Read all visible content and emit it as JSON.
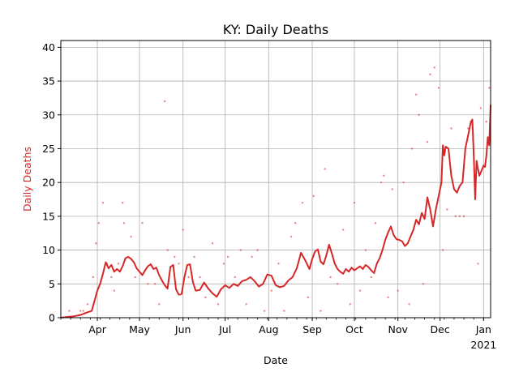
{
  "chart_data": {
    "type": "line",
    "title": "KY: Daily Deaths",
    "xlabel": "Date",
    "ylabel": "Daily Deaths",
    "x_start": "2020-03-06",
    "x_end": "2021-01-06",
    "ylim": [
      0,
      41
    ],
    "yticks": [
      0,
      5,
      10,
      15,
      20,
      25,
      30,
      35,
      40
    ],
    "xticks": [
      {
        "date": "2020-04-01",
        "label": "Apr",
        "sublabel": ""
      },
      {
        "date": "2020-05-01",
        "label": "May",
        "sublabel": ""
      },
      {
        "date": "2020-06-01",
        "label": "Jun",
        "sublabel": ""
      },
      {
        "date": "2020-07-01",
        "label": "Jul",
        "sublabel": ""
      },
      {
        "date": "2020-08-01",
        "label": "Aug",
        "sublabel": ""
      },
      {
        "date": "2020-09-01",
        "label": "Sep",
        "sublabel": ""
      },
      {
        "date": "2020-10-01",
        "label": "Oct",
        "sublabel": ""
      },
      {
        "date": "2020-11-01",
        "label": "Nov",
        "sublabel": ""
      },
      {
        "date": "2020-12-01",
        "label": "Dec",
        "sublabel": ""
      },
      {
        "date": "2021-01-01",
        "label": "Jan",
        "sublabel": "2021"
      }
    ],
    "grid": true,
    "line_color": "#d62728",
    "scatter_color": "#d62728",
    "series": [
      {
        "type": "line",
        "points": [
          [
            "2020-03-06",
            0
          ],
          [
            "2020-03-10",
            0.1
          ],
          [
            "2020-03-15",
            0.2
          ],
          [
            "2020-03-20",
            0.4
          ],
          [
            "2020-03-25",
            0.8
          ],
          [
            "2020-03-28",
            1.0
          ],
          [
            "2020-03-30",
            2.5
          ],
          [
            "2020-04-01",
            4.0
          ],
          [
            "2020-04-03",
            5.0
          ],
          [
            "2020-04-05",
            6.5
          ],
          [
            "2020-04-07",
            8.2
          ],
          [
            "2020-04-09",
            7.3
          ],
          [
            "2020-04-11",
            7.8
          ],
          [
            "2020-04-13",
            6.8
          ],
          [
            "2020-04-15",
            7.2
          ],
          [
            "2020-04-17",
            6.8
          ],
          [
            "2020-04-19",
            7.6
          ],
          [
            "2020-04-21",
            8.8
          ],
          [
            "2020-04-23",
            9.0
          ],
          [
            "2020-04-25",
            8.7
          ],
          [
            "2020-04-27",
            8.2
          ],
          [
            "2020-04-29",
            7.3
          ],
          [
            "2020-05-01",
            6.8
          ],
          [
            "2020-05-03",
            6.3
          ],
          [
            "2020-05-05",
            7.0
          ],
          [
            "2020-05-07",
            7.6
          ],
          [
            "2020-05-09",
            7.9
          ],
          [
            "2020-05-11",
            7.2
          ],
          [
            "2020-05-13",
            7.4
          ],
          [
            "2020-05-15",
            6.3
          ],
          [
            "2020-05-17",
            5.5
          ],
          [
            "2020-05-19",
            4.8
          ],
          [
            "2020-05-21",
            4.3
          ],
          [
            "2020-05-23",
            7.5
          ],
          [
            "2020-05-25",
            7.8
          ],
          [
            "2020-05-27",
            4.2
          ],
          [
            "2020-05-29",
            3.4
          ],
          [
            "2020-05-31",
            3.5
          ],
          [
            "2020-06-02",
            6.0
          ],
          [
            "2020-06-04",
            7.8
          ],
          [
            "2020-06-06",
            7.9
          ],
          [
            "2020-06-08",
            5.3
          ],
          [
            "2020-06-10",
            4.0
          ],
          [
            "2020-06-13",
            4.1
          ],
          [
            "2020-06-16",
            5.2
          ],
          [
            "2020-06-19",
            4.3
          ],
          [
            "2020-06-22",
            3.6
          ],
          [
            "2020-06-25",
            3.1
          ],
          [
            "2020-06-28",
            4.2
          ],
          [
            "2020-07-01",
            4.8
          ],
          [
            "2020-07-04",
            4.4
          ],
          [
            "2020-07-07",
            5.0
          ],
          [
            "2020-07-10",
            4.7
          ],
          [
            "2020-07-13",
            5.4
          ],
          [
            "2020-07-16",
            5.6
          ],
          [
            "2020-07-19",
            6.0
          ],
          [
            "2020-07-22",
            5.4
          ],
          [
            "2020-07-25",
            4.6
          ],
          [
            "2020-07-28",
            5.0
          ],
          [
            "2020-07-31",
            6.4
          ],
          [
            "2020-08-03",
            6.2
          ],
          [
            "2020-08-06",
            4.8
          ],
          [
            "2020-08-09",
            4.5
          ],
          [
            "2020-08-12",
            4.7
          ],
          [
            "2020-08-15",
            5.5
          ],
          [
            "2020-08-18",
            6.0
          ],
          [
            "2020-08-21",
            7.3
          ],
          [
            "2020-08-24",
            9.6
          ],
          [
            "2020-08-27",
            8.5
          ],
          [
            "2020-08-30",
            7.2
          ],
          [
            "2020-09-01",
            8.7
          ],
          [
            "2020-09-03",
            9.8
          ],
          [
            "2020-09-05",
            10.1
          ],
          [
            "2020-09-07",
            8.3
          ],
          [
            "2020-09-09",
            7.9
          ],
          [
            "2020-09-11",
            9.2
          ],
          [
            "2020-09-13",
            10.8
          ],
          [
            "2020-09-15",
            9.5
          ],
          [
            "2020-09-17",
            8.0
          ],
          [
            "2020-09-19",
            7.2
          ],
          [
            "2020-09-21",
            6.8
          ],
          [
            "2020-09-23",
            6.5
          ],
          [
            "2020-09-25",
            7.2
          ],
          [
            "2020-09-27",
            6.8
          ],
          [
            "2020-09-29",
            7.4
          ],
          [
            "2020-10-01",
            7.0
          ],
          [
            "2020-10-03",
            7.3
          ],
          [
            "2020-10-05",
            7.6
          ],
          [
            "2020-10-07",
            7.2
          ],
          [
            "2020-10-09",
            7.8
          ],
          [
            "2020-10-11",
            7.5
          ],
          [
            "2020-10-13",
            7.0
          ],
          [
            "2020-10-15",
            6.6
          ],
          [
            "2020-10-17",
            8.0
          ],
          [
            "2020-10-19",
            8.8
          ],
          [
            "2020-10-21",
            10.0
          ],
          [
            "2020-10-23",
            11.5
          ],
          [
            "2020-10-25",
            12.6
          ],
          [
            "2020-10-27",
            13.5
          ],
          [
            "2020-10-29",
            12.2
          ],
          [
            "2020-10-31",
            11.6
          ],
          [
            "2020-11-02",
            11.5
          ],
          [
            "2020-11-04",
            11.3
          ],
          [
            "2020-11-06",
            10.6
          ],
          [
            "2020-11-08",
            11.0
          ],
          [
            "2020-11-10",
            12.0
          ],
          [
            "2020-11-12",
            13.0
          ],
          [
            "2020-11-14",
            14.5
          ],
          [
            "2020-11-16",
            13.8
          ],
          [
            "2020-11-18",
            15.5
          ],
          [
            "2020-11-20",
            14.6
          ],
          [
            "2020-11-22",
            17.8
          ],
          [
            "2020-11-24",
            16.0
          ],
          [
            "2020-11-26",
            13.5
          ],
          [
            "2020-11-28",
            16.0
          ],
          [
            "2020-11-30",
            18.0
          ],
          [
            "2020-12-02",
            20.0
          ],
          [
            "2020-12-03",
            25.5
          ],
          [
            "2020-12-04",
            24.0
          ],
          [
            "2020-12-05",
            25.3
          ],
          [
            "2020-12-07",
            25.0
          ],
          [
            "2020-12-09",
            21.0
          ],
          [
            "2020-12-11",
            19.0
          ],
          [
            "2020-12-13",
            18.5
          ],
          [
            "2020-12-15",
            19.5
          ],
          [
            "2020-12-17",
            20.0
          ],
          [
            "2020-12-19",
            25.0
          ],
          [
            "2020-12-21",
            27.0
          ],
          [
            "2020-12-23",
            29.0
          ],
          [
            "2020-12-24",
            29.3
          ],
          [
            "2020-12-25",
            24.0
          ],
          [
            "2020-12-26",
            17.5
          ],
          [
            "2020-12-27",
            23.2
          ],
          [
            "2020-12-28",
            22.0
          ],
          [
            "2020-12-29",
            21.0
          ],
          [
            "2020-12-31",
            22.0
          ],
          [
            "2021-01-01",
            22.5
          ],
          [
            "2021-01-02",
            22.3
          ],
          [
            "2021-01-03",
            24.0
          ],
          [
            "2021-01-04",
            26.7
          ],
          [
            "2021-01-05",
            25.5
          ],
          [
            "2021-01-06",
            31.5
          ]
        ]
      },
      {
        "type": "scatter",
        "points": [
          [
            "2020-03-12",
            1
          ],
          [
            "2020-03-20",
            1
          ],
          [
            "2020-03-22",
            1
          ],
          [
            "2020-03-25",
            2
          ],
          [
            "2020-03-29",
            6
          ],
          [
            "2020-03-31",
            11
          ],
          [
            "2020-04-02",
            14
          ],
          [
            "2020-04-05",
            17
          ],
          [
            "2020-04-08",
            8
          ],
          [
            "2020-04-11",
            6
          ],
          [
            "2020-04-13",
            4
          ],
          [
            "2020-04-16",
            8
          ],
          [
            "2020-04-19",
            17
          ],
          [
            "2020-04-20",
            14
          ],
          [
            "2020-04-25",
            12
          ],
          [
            "2020-04-28",
            6
          ],
          [
            "2020-05-03",
            14
          ],
          [
            "2020-05-07",
            5
          ],
          [
            "2020-05-12",
            5
          ],
          [
            "2020-05-15",
            2
          ],
          [
            "2020-05-19",
            32
          ],
          [
            "2020-05-21",
            10
          ],
          [
            "2020-05-26",
            9
          ],
          [
            "2020-05-29",
            8
          ],
          [
            "2020-06-01",
            13
          ],
          [
            "2020-06-05",
            6
          ],
          [
            "2020-06-09",
            9
          ],
          [
            "2020-06-13",
            6
          ],
          [
            "2020-06-17",
            3
          ],
          [
            "2020-06-22",
            11
          ],
          [
            "2020-06-26",
            2
          ],
          [
            "2020-06-30",
            8
          ],
          [
            "2020-07-03",
            9
          ],
          [
            "2020-07-08",
            6
          ],
          [
            "2020-07-12",
            10
          ],
          [
            "2020-07-16",
            2
          ],
          [
            "2020-07-20",
            9
          ],
          [
            "2020-07-24",
            10
          ],
          [
            "2020-07-29",
            1
          ],
          [
            "2020-08-03",
            4
          ],
          [
            "2020-08-08",
            8
          ],
          [
            "2020-08-12",
            1
          ],
          [
            "2020-08-17",
            12
          ],
          [
            "2020-08-20",
            14
          ],
          [
            "2020-08-25",
            17
          ],
          [
            "2020-08-29",
            3
          ],
          [
            "2020-09-02",
            18
          ],
          [
            "2020-09-07",
            1
          ],
          [
            "2020-09-10",
            22
          ],
          [
            "2020-09-14",
            6
          ],
          [
            "2020-09-19",
            5
          ],
          [
            "2020-09-23",
            13
          ],
          [
            "2020-09-28",
            2
          ],
          [
            "2020-10-01",
            17
          ],
          [
            "2020-10-05",
            4
          ],
          [
            "2020-10-09",
            10
          ],
          [
            "2020-10-13",
            6
          ],
          [
            "2020-10-16",
            14
          ],
          [
            "2020-10-20",
            20
          ],
          [
            "2020-10-22",
            21
          ],
          [
            "2020-10-25",
            3
          ],
          [
            "2020-10-28",
            19
          ],
          [
            "2020-11-01",
            4
          ],
          [
            "2020-11-05",
            20
          ],
          [
            "2020-11-09",
            2
          ],
          [
            "2020-11-11",
            25
          ],
          [
            "2020-11-14",
            33
          ],
          [
            "2020-11-16",
            30
          ],
          [
            "2020-11-19",
            5
          ],
          [
            "2020-11-22",
            26
          ],
          [
            "2020-11-24",
            36
          ],
          [
            "2020-11-27",
            37
          ],
          [
            "2020-11-30",
            34
          ],
          [
            "2020-12-03",
            10
          ],
          [
            "2020-12-06",
            16
          ],
          [
            "2020-12-09",
            28
          ],
          [
            "2020-12-12",
            15
          ],
          [
            "2020-12-15",
            15
          ],
          [
            "2020-12-18",
            15
          ],
          [
            "2020-12-21",
            28
          ],
          [
            "2020-12-24",
            28
          ],
          [
            "2020-12-28",
            8
          ],
          [
            "2020-12-30",
            31
          ],
          [
            "2021-01-03",
            29
          ],
          [
            "2021-01-05",
            34
          ]
        ]
      }
    ]
  }
}
